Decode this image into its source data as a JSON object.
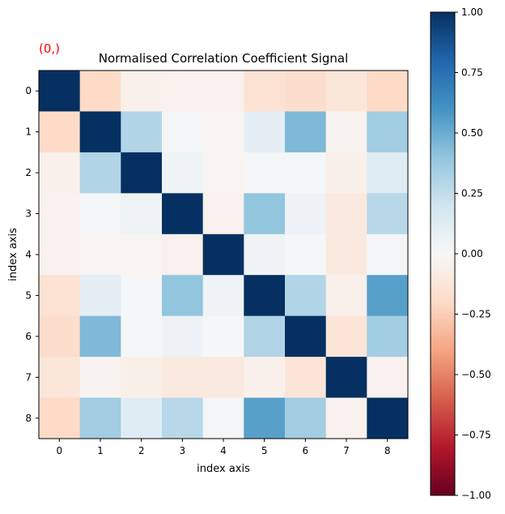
{
  "chart_data": {
    "type": "heatmap",
    "title": "Normalised Correlation Coefficient Signal",
    "xlabel": "index axis",
    "ylabel": "index axis",
    "corner_label": "(0,)",
    "x_ticks": [
      "0",
      "1",
      "2",
      "3",
      "4",
      "5",
      "6",
      "7",
      "8"
    ],
    "y_ticks": [
      "0",
      "1",
      "2",
      "3",
      "4",
      "5",
      "6",
      "7",
      "8"
    ],
    "colorbar": {
      "colormap": "RdBu",
      "vmin": -1.0,
      "vmax": 1.0,
      "ticks": [
        "1.00",
        "0.75",
        "0.50",
        "0.25",
        "0.00",
        "−0.25",
        "−0.50",
        "−0.75",
        "−1.00"
      ],
      "tick_values": [
        1.0,
        0.75,
        0.5,
        0.25,
        0.0,
        -0.25,
        -0.5,
        -0.75,
        -1.0
      ]
    },
    "matrix": [
      [
        1.0,
        -0.2,
        -0.05,
        -0.04,
        -0.04,
        -0.15,
        -0.18,
        -0.12,
        -0.2
      ],
      [
        -0.2,
        1.0,
        0.3,
        0.02,
        -0.02,
        0.1,
        0.45,
        -0.03,
        0.35
      ],
      [
        -0.05,
        0.3,
        1.0,
        0.05,
        -0.02,
        0.01,
        0.01,
        -0.06,
        0.12
      ],
      [
        -0.04,
        0.02,
        0.05,
        1.0,
        -0.04,
        0.4,
        0.06,
        -0.1,
        0.28
      ],
      [
        -0.04,
        -0.02,
        -0.02,
        -0.04,
        1.0,
        0.04,
        0.01,
        -0.1,
        0.02
      ],
      [
        -0.15,
        0.1,
        0.01,
        0.4,
        0.04,
        1.0,
        0.3,
        -0.05,
        0.55
      ],
      [
        -0.18,
        0.45,
        0.01,
        0.06,
        0.01,
        0.3,
        1.0,
        -0.13,
        0.35
      ],
      [
        -0.12,
        -0.03,
        -0.06,
        -0.1,
        -0.1,
        -0.05,
        -0.13,
        1.0,
        -0.04
      ],
      [
        -0.2,
        0.35,
        0.12,
        0.28,
        0.02,
        0.55,
        0.35,
        -0.04,
        1.0
      ]
    ],
    "grid": false,
    "legend": "none"
  },
  "colors": {
    "corner_label": "#ff0000",
    "text": "#000000",
    "axis": "#000000"
  }
}
